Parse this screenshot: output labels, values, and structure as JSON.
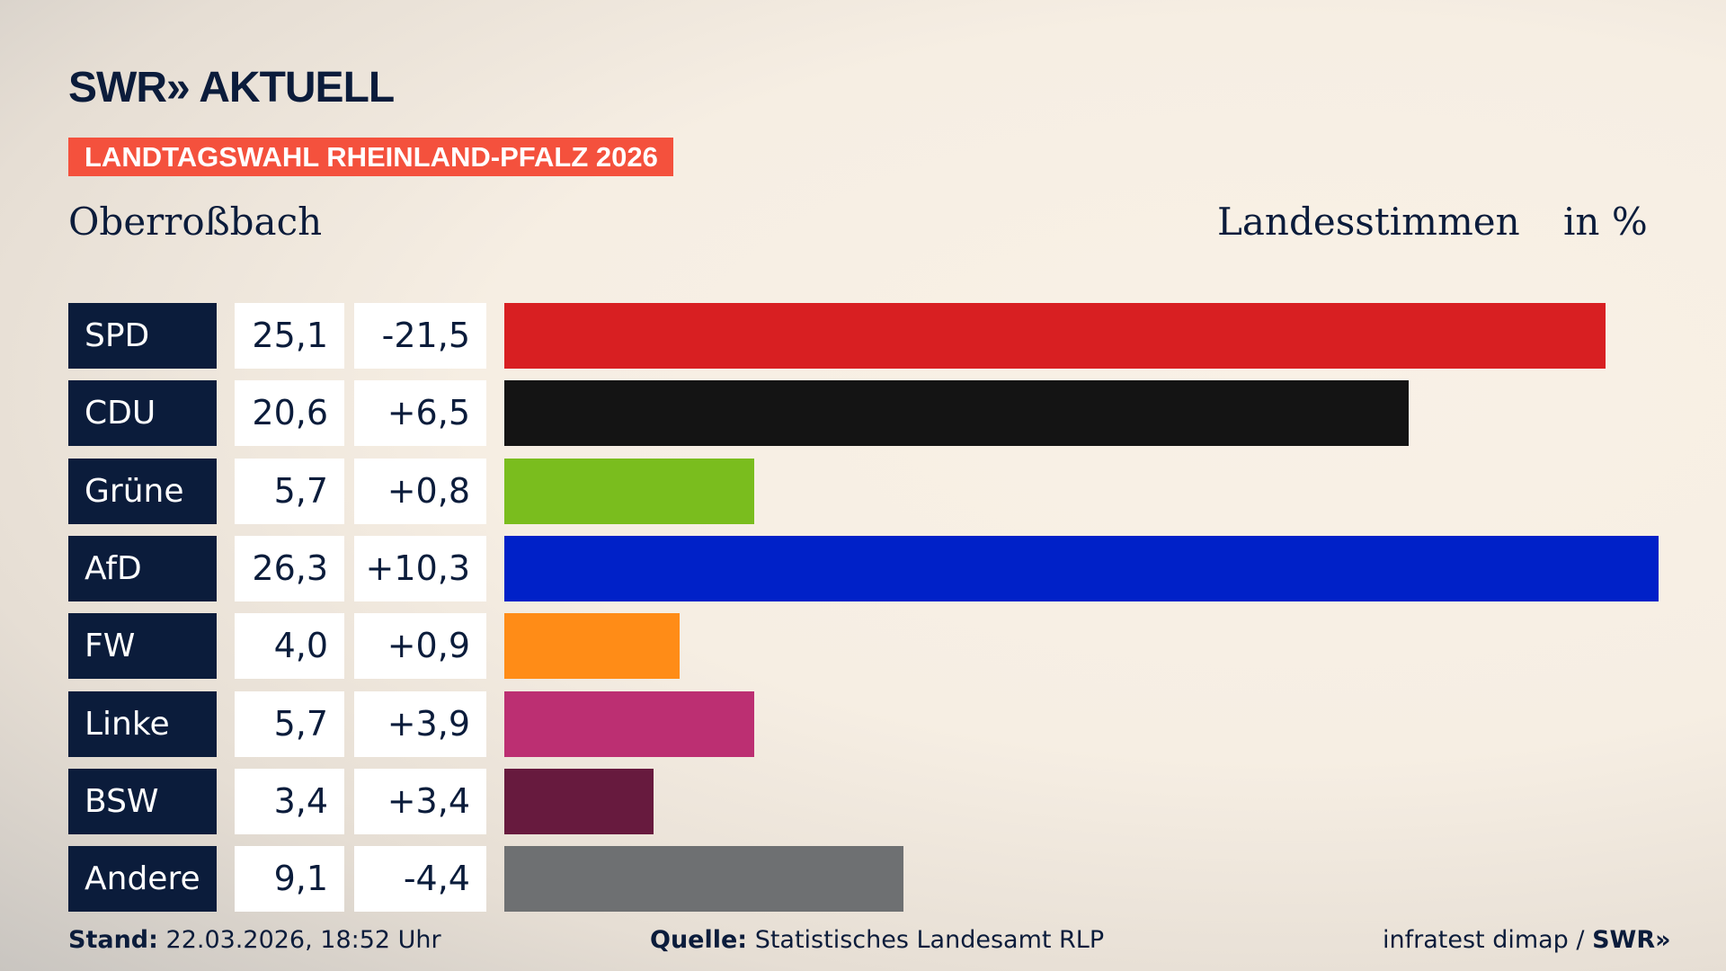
{
  "header": {
    "logo": "SWR» AKTUELL",
    "banner": "LANDTAGSWAHL RHEINLAND-PFALZ 2026",
    "place": "Oberroßbach",
    "vote_type": "Landesstimmen",
    "unit": "in %"
  },
  "chart_data": {
    "type": "bar",
    "orientation": "horizontal",
    "categories": [
      "SPD",
      "CDU",
      "Grüne",
      "AfD",
      "FW",
      "Linke",
      "BSW",
      "Andere"
    ],
    "values": [
      25.1,
      20.6,
      5.7,
      26.3,
      4.0,
      5.7,
      3.4,
      9.1
    ],
    "value_labels": [
      "25,1",
      "20,6",
      "5,7",
      "26,3",
      "4,0",
      "5,7",
      "3,4",
      "9,1"
    ],
    "diff_labels": [
      "-21,5",
      "+6,5",
      "+0,8",
      "+10,3",
      "+0,9",
      "+3,9",
      "+3,4",
      "-4,4"
    ],
    "colors": [
      "#d81f22",
      "#141414",
      "#7abd1e",
      "#0021c8",
      "#ff8c17",
      "#bc2f72",
      "#671a3e",
      "#6e7072"
    ],
    "xlim": [
      0,
      26.3
    ]
  },
  "footer": {
    "stand_label": "Stand:",
    "stand_value": "22.03.2026, 18:52 Uhr",
    "source_label": "Quelle:",
    "source_value": "Statistisches Landesamt RLP",
    "credit": "infratest dimap / ",
    "credit_logo": "SWR»"
  }
}
